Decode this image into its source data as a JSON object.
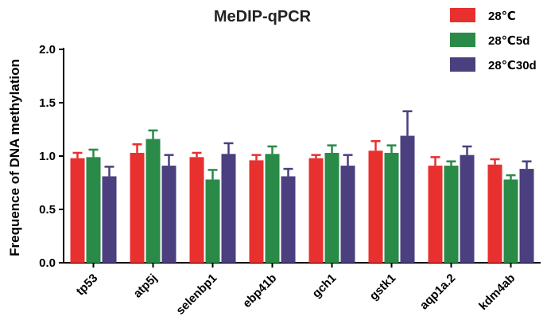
{
  "chart_data": {
    "type": "bar",
    "title": "MeDIP-qPCR",
    "ylabel": "Frequence of DNA methylation",
    "xlabel": "",
    "ylim": [
      0,
      2.0
    ],
    "yticks": [
      "0.0",
      "0.5",
      "1.0",
      "1.5",
      "2.0"
    ],
    "ytick_values": [
      0,
      0.5,
      1.0,
      1.5,
      2.0
    ],
    "categories": [
      "tp53",
      "atp5j",
      "selenbp1",
      "ebp41b",
      "gch1",
      "gstk1",
      "aqp1a.2",
      "kdm4ab"
    ],
    "legend_position": "top-right",
    "grid": false,
    "series": [
      {
        "name": "28℃",
        "color": "#e8302f",
        "values": [
          0.98,
          1.03,
          0.99,
          0.96,
          0.98,
          1.05,
          0.91,
          0.92
        ],
        "errors": [
          0.05,
          0.08,
          0.04,
          0.05,
          0.03,
          0.09,
          0.08,
          0.05
        ]
      },
      {
        "name": "28℃5d",
        "color": "#2a8a47",
        "values": [
          0.99,
          1.16,
          0.78,
          1.02,
          1.03,
          1.03,
          0.91,
          0.78
        ],
        "errors": [
          0.07,
          0.08,
          0.09,
          0.07,
          0.07,
          0.07,
          0.04,
          0.04
        ]
      },
      {
        "name": "28℃30d",
        "color": "#4b3f7f",
        "values": [
          0.81,
          0.91,
          1.02,
          0.81,
          0.91,
          1.19,
          1.01,
          0.88
        ],
        "errors": [
          0.09,
          0.1,
          0.1,
          0.07,
          0.1,
          0.23,
          0.08,
          0.07
        ]
      }
    ]
  }
}
